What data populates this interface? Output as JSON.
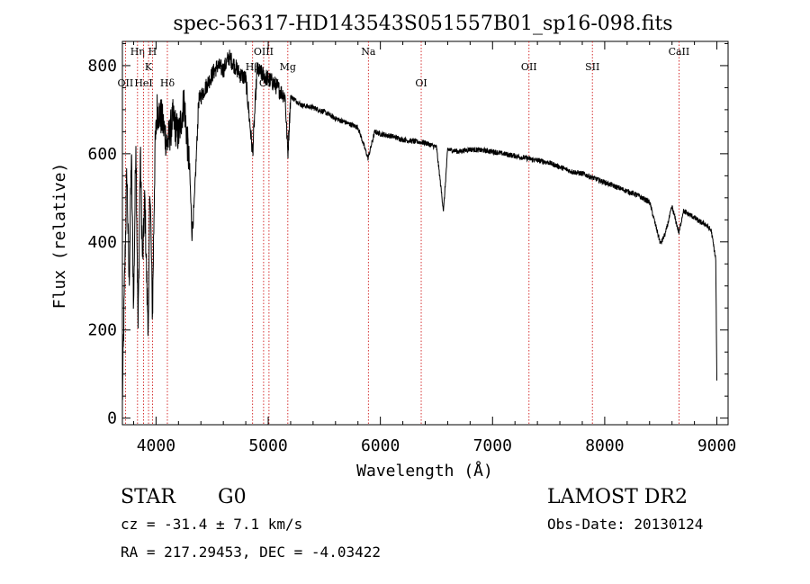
{
  "chart_data": {
    "type": "line",
    "title": "spec-56317-HD143543S051557B01_sp16-098.fits",
    "xlabel": "Wavelength (Å)",
    "ylabel": "Flux (relative)",
    "xlim": [
      3700,
      9100
    ],
    "ylim": [
      -15,
      855
    ],
    "xticks": [
      4000,
      5000,
      6000,
      7000,
      8000,
      9000
    ],
    "yticks": [
      0,
      200,
      400,
      600,
      800
    ],
    "xtick_labels": [
      "4000",
      "5000",
      "6000",
      "7000",
      "8000",
      "9000"
    ],
    "ytick_labels": [
      "0",
      "200",
      "400",
      "600",
      "800"
    ],
    "grid": false,
    "line_color": "#000000",
    "marker_color": "#cc0000",
    "series": [
      {
        "x": [
          3700,
          3720,
          3740,
          3760,
          3780,
          3800,
          3820,
          3840,
          3860,
          3880,
          3900,
          3920,
          3933,
          3945,
          3968,
          3990,
          4010,
          4050,
          4101,
          4150,
          4200,
          4250,
          4300,
          4320,
          4340,
          4380,
          4420,
          4460,
          4500,
          4550,
          4600,
          4650,
          4700,
          4750,
          4800,
          4861,
          4900,
          4950,
          5000,
          5050,
          5100,
          5150,
          5175,
          5200,
          5300,
          5400,
          5500,
          5600,
          5700,
          5800,
          5890,
          5950,
          6000,
          6100,
          6200,
          6300,
          6400,
          6500,
          6563,
          6600,
          6700,
          6800,
          6900,
          7000,
          7100,
          7200,
          7300,
          7400,
          7500,
          7600,
          7700,
          7800,
          7900,
          8000,
          8100,
          8200,
          8300,
          8400,
          8498,
          8542,
          8600,
          8662,
          8700,
          8800,
          8850,
          8900,
          8950,
          8990,
          9000
        ],
        "y": [
          30,
          320,
          560,
          300,
          600,
          250,
          640,
          200,
          600,
          350,
          500,
          280,
          200,
          550,
          230,
          600,
          700,
          680,
          620,
          680,
          640,
          720,
          560,
          420,
          480,
          720,
          740,
          760,
          780,
          800,
          790,
          820,
          800,
          780,
          770,
          600,
          790,
          780,
          770,
          760,
          745,
          730,
          600,
          730,
          710,
          705,
          695,
          680,
          670,
          660,
          590,
          650,
          645,
          640,
          632,
          628,
          625,
          615,
          470,
          610,
          605,
          610,
          608,
          605,
          600,
          595,
          590,
          585,
          580,
          570,
          560,
          555,
          545,
          535,
          525,
          515,
          505,
          490,
          395,
          420,
          480,
          420,
          470,
          455,
          445,
          440,
          425,
          360,
          80
        ]
      }
    ],
    "line_markers": [
      {
        "label": "Hη",
        "x": 3835,
        "row": 1
      },
      {
        "label": "H",
        "x": 3968,
        "row": 1
      },
      {
        "label": "K",
        "x": 3933,
        "row": 2
      },
      {
        "label": "OII",
        "x": 3727,
        "row": 3
      },
      {
        "label": "HeI",
        "x": 3889,
        "row": 3
      },
      {
        "label": "Hδ",
        "x": 4101,
        "row": 3
      },
      {
        "label": "OIII",
        "x": 4959,
        "row": 1
      },
      {
        "label": "Hβ",
        "x": 4861,
        "row": 2
      },
      {
        "label": "Mg",
        "x": 5175,
        "row": 2
      },
      {
        "label": "OIII",
        "x": 5007,
        "row": 3
      },
      {
        "label": "Na",
        "x": 5893,
        "row": 1
      },
      {
        "label": "OI",
        "x": 6364,
        "row": 3
      },
      {
        "label": "OII",
        "x": 7325,
        "row": 2
      },
      {
        "label": "SII",
        "x": 7890,
        "row": 2
      },
      {
        "label": "CaII",
        "x": 8662,
        "row": 1
      }
    ]
  },
  "info": {
    "object_class": "STAR",
    "subclass": "G0",
    "survey": "LAMOST DR2",
    "cz": "cz = -31.4 ± 7.1 km/s",
    "obs_date": "Obs-Date: 20130124",
    "coords": "RA = 217.29453, DEC =  -4.03422"
  }
}
